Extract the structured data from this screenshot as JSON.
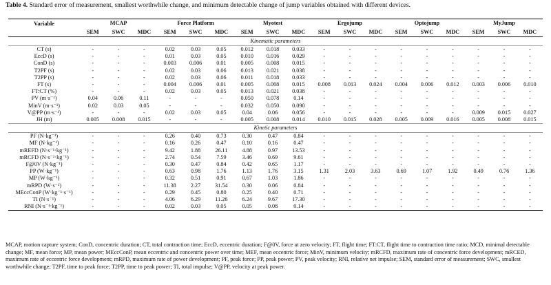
{
  "caption": {
    "label": "Table 4.",
    "text": " Standard error of measurement, smallest worthwhile change, and minimum detectable change of jump variables obtained with different devices."
  },
  "header": {
    "variable": "Variable",
    "devices": [
      "MCAP",
      "Force Platform",
      "Myotest",
      "Ergojump",
      "Optojump",
      "MyJump"
    ],
    "metrics": [
      "SEM",
      "SWC",
      "MDC"
    ]
  },
  "sections": [
    {
      "title": "Kinematic parameters",
      "rows": [
        {
          "var": "CT (s)",
          "vals": [
            "-",
            "-",
            "-",
            "0.02",
            "0.03",
            "0.05",
            "0.012",
            "0.018",
            "0.033",
            "-",
            "-",
            "-",
            "-",
            "-",
            "-",
            "-",
            "-",
            "-"
          ]
        },
        {
          "var": "EccD (s)",
          "vals": [
            "-",
            "-",
            "-",
            "0.01",
            "0.03",
            "0.05",
            "0.010",
            "0.016",
            "0.029",
            "-",
            "-",
            "-",
            "-",
            "-",
            "-",
            "-",
            "-",
            "-"
          ]
        },
        {
          "var": "ConD (s)",
          "vals": [
            "-",
            "-",
            "-",
            "0.003",
            "0.006",
            "0.01",
            "0.005",
            "0.008",
            "0.015",
            "-",
            "-",
            "-",
            "-",
            "-",
            "-",
            "-",
            "-",
            "-"
          ]
        },
        {
          "var": "T2PF (s)",
          "vals": [
            "-",
            "-",
            "-",
            "0.02",
            "0.03",
            "0.06",
            "0.013",
            "0.021",
            "0.038",
            "-",
            "-",
            "-",
            "-",
            "-",
            "-",
            "-",
            "-",
            "-"
          ]
        },
        {
          "var": "T2PP (s)",
          "vals": [
            "-",
            "-",
            "-",
            "0.02",
            "0.03",
            "0.06",
            "0.011",
            "0.018",
            "0.033",
            "-",
            "-",
            "-",
            "-",
            "-",
            "-",
            "-",
            "-",
            "-"
          ]
        },
        {
          "var": "FT (s)",
          "vals": [
            "-",
            "-",
            "-",
            "0.004",
            "0.006",
            "0.01",
            "0.005",
            "0.008",
            "0.015",
            "0.008",
            "0.013",
            "0.024",
            "0.004",
            "0.006",
            "0.012",
            "0.003",
            "0.006",
            "0.010"
          ]
        },
        {
          "var": "FT:CT (%)",
          "vals": [
            "-",
            "-",
            "-",
            "0.02",
            "0.03",
            "0.05",
            "0.013",
            "0.021",
            "0.038",
            "-",
            "-",
            "-",
            "-",
            "-",
            "-",
            "-",
            "-",
            "-"
          ]
        },
        {
          "var": "PV (m·s⁻¹)",
          "vals": [
            "0.04",
            "0.06",
            "0.11",
            "-",
            "-",
            "-",
            "0.050",
            "0.078",
            "0.14",
            "-",
            "-",
            "-",
            "-",
            "-",
            "-",
            "-",
            "-",
            "-"
          ]
        },
        {
          "var": "MinV (m·s⁻¹)",
          "vals": [
            "0.02",
            "0.03",
            "0.05",
            "-",
            "-",
            "-",
            "0.032",
            "0.050",
            "0.090",
            "-",
            "-",
            "-",
            "-",
            "-",
            "-",
            "-",
            "-",
            "-"
          ]
        },
        {
          "var": "V@PP (m·s⁻¹)",
          "vals": [
            "-",
            "-",
            "-",
            "0.02",
            "0.03",
            "0.05",
            "0.04",
            "0.06",
            "0.056",
            "-",
            "-",
            "-",
            "-",
            "-",
            "-",
            "0.009",
            "0.015",
            "0.027"
          ]
        },
        {
          "var": "JH (m)",
          "vals": [
            "0.005",
            "0.008",
            "0.015",
            "-",
            "-",
            "-",
            "0.005",
            "0.008",
            "0.014",
            "0.010",
            "0.015",
            "0.028",
            "0.005",
            "0.009",
            "0.016",
            "0.005",
            "0.008",
            "0.015"
          ]
        }
      ]
    },
    {
      "title": "Kinetic parameters",
      "rows": [
        {
          "var": "PF (N·kg⁻¹)",
          "vals": [
            "-",
            "-",
            "-",
            "0.26",
            "0.40",
            "0.73",
            "0.30",
            "0.47",
            "0.84",
            "-",
            "-",
            "-",
            "-",
            "-",
            "-",
            "-",
            "-",
            "-"
          ]
        },
        {
          "var": "MF (N·kg⁻¹)",
          "vals": [
            "-",
            "-",
            "-",
            "0.16",
            "0.26",
            "0.47",
            "0.10",
            "0.16",
            "0.47",
            "-",
            "-",
            "-",
            "-",
            "-",
            "-",
            "-",
            "-",
            "-"
          ]
        },
        {
          "var": "mREFD (N·s⁻¹·kg⁻¹)",
          "vals": [
            "-",
            "-",
            "-",
            "9.42",
            "1.88",
            "26.11",
            "4.88",
            "0.97",
            "13.53",
            "-",
            "-",
            "-",
            "-",
            "-",
            "-",
            "-",
            "-",
            "-"
          ]
        },
        {
          "var": "mRCFD (N·s⁻¹·kg⁻¹)",
          "vals": [
            "-",
            "-",
            "-",
            "2.74",
            "0.54",
            "7.59",
            "3.46",
            "0.69",
            "9.61",
            "-",
            "-",
            "-",
            "-",
            "-",
            "-",
            "-",
            "-",
            "-"
          ]
        },
        {
          "var": "F@0V (N·kg⁻¹)",
          "vals": [
            "-",
            "-",
            "-",
            "0.30",
            "0.47",
            "0.84",
            "0.42",
            "0.65",
            "1.17",
            "-",
            "-",
            "-",
            "-",
            "-",
            "-",
            "-",
            "-",
            "-"
          ]
        },
        {
          "var": "PP (W·kg⁻¹)",
          "vals": [
            "-",
            "-",
            "-",
            "0.63",
            "0.98",
            "1.76",
            "1.13",
            "1.76",
            "3.15",
            "1.31",
            "2.03",
            "3.63",
            "0.69",
            "1.07",
            "1.92",
            "0.49",
            "0.76",
            "1.36"
          ]
        },
        {
          "var": "MP (W·kg⁻¹)",
          "vals": [
            "-",
            "-",
            "-",
            "0.32",
            "0.51",
            "0.91",
            "0.67",
            "1.03",
            "1.86",
            "-",
            "-",
            "-",
            "-",
            "-",
            "-",
            "-",
            "-",
            "-"
          ]
        },
        {
          "var": "mRPD (W·s⁻¹)",
          "vals": [
            "-",
            "-",
            "-",
            "11.38",
            "2.27",
            "31.54",
            "0.30",
            "0.06",
            "0.84",
            "-",
            "-",
            "-",
            "-",
            "-",
            "-",
            "-",
            "-",
            "-"
          ]
        },
        {
          "var": "MEccConP (W·kg⁻¹·s⁻¹)",
          "tall": true,
          "vals": [
            "-",
            "-",
            "-",
            "0.29",
            "0.45",
            "0.80",
            "0.25",
            "0.40",
            "0.71",
            "-",
            "-",
            "-",
            "-",
            "-",
            "-",
            "-",
            "-",
            "-"
          ]
        },
        {
          "var": "TI (N·s⁻¹)",
          "vals": [
            "-",
            "-",
            "-",
            "4.06",
            "6.29",
            "11.26",
            "6.24",
            "9.67",
            "17.30",
            "-",
            "-",
            "-",
            "-",
            "-",
            "-",
            "-",
            "-",
            "-"
          ]
        },
        {
          "var": "RNI (N·s⁻¹·kg⁻¹)",
          "vals": [
            "-",
            "-",
            "-",
            "0.02",
            "0.03",
            "0.05",
            "0.05",
            "0.08",
            "0.14",
            "-",
            "-",
            "-",
            "-",
            "-",
            "-",
            "-",
            "-",
            "-"
          ]
        }
      ]
    }
  ],
  "footnote": "MCAP, motion capture system; ConD, concentric duration; CT, total contraction time; EccD, eccentric duration; F@0V, force at zero velocity; FT, flight time; FT:CT, flight time to contraction time ratio; MCD, minimal detectable change; MF, mean force; MP, mean power; MEccConP, mean eccentric and concentric power over time; MEF, mean eccentric force; MinV, minimum velocity; mRCFD, maximum rate of concentric force development; mRCED, maximum rate of eccentric force development; mRPD, maximum rate of power development; PF, peak force; PP, peak power; PV, peak velocity; RNI, relative net impulse; SEM, standard error of measurement; SWC, smallest worthwhile change; T2PF, time to peak force; T2PP, time to peak power; TI, total impulse; V@PP, velocity at peak power."
}
